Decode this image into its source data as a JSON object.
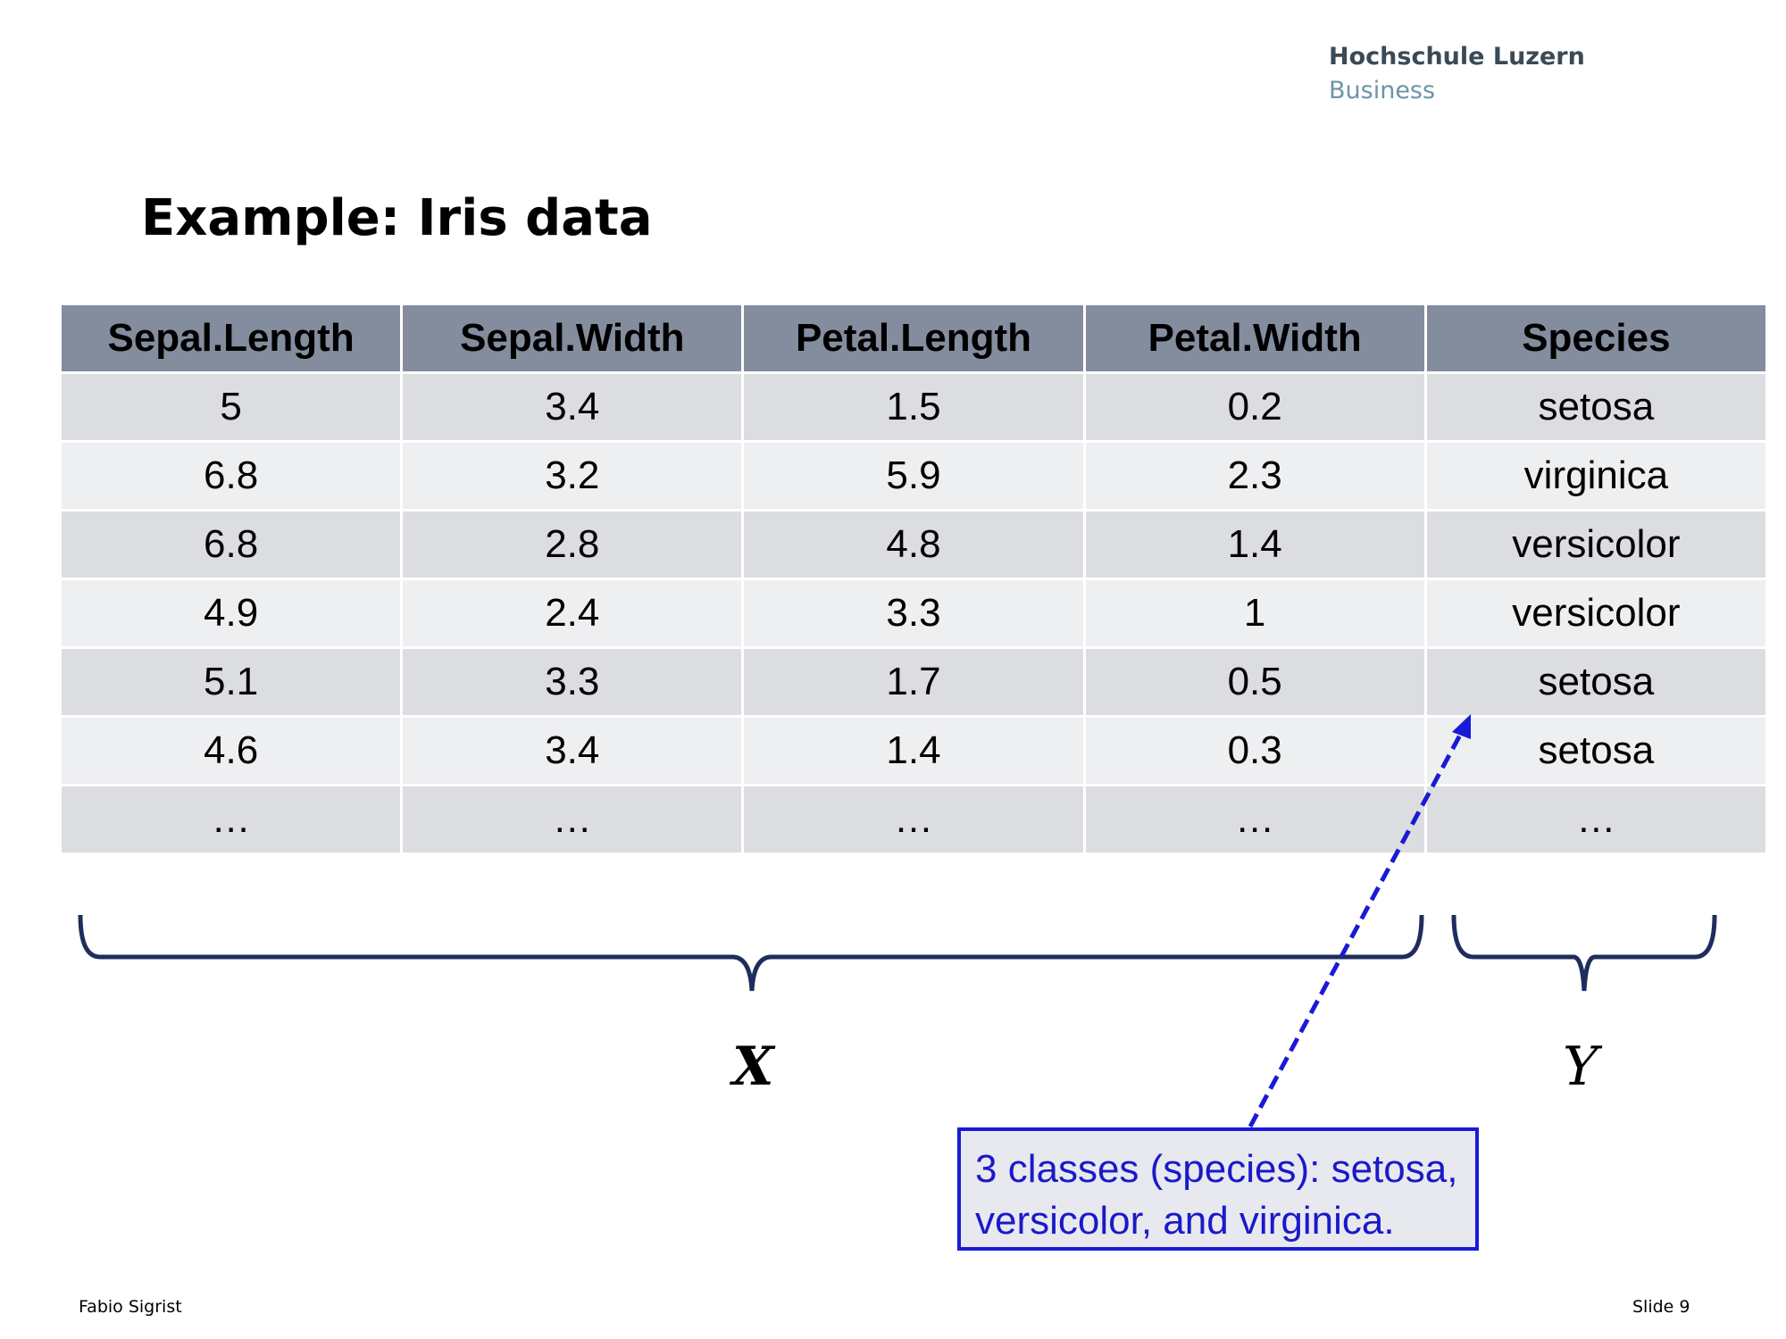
{
  "header": {
    "institution": "Hochschule Luzern",
    "department": "Business"
  },
  "title": "Example: Iris data",
  "table": {
    "columns": [
      "Sepal.Length",
      "Sepal.Width",
      "Petal.Length",
      "Petal.Width",
      "Species"
    ],
    "rows": [
      [
        "5",
        "3.4",
        "1.5",
        "0.2",
        "setosa"
      ],
      [
        "6.8",
        "3.2",
        "5.9",
        "2.3",
        "virginica"
      ],
      [
        "6.8",
        "2.8",
        "4.8",
        "1.4",
        "versicolor"
      ],
      [
        "4.9",
        "2.4",
        "3.3",
        "1",
        "versicolor"
      ],
      [
        "5.1",
        "3.3",
        "1.7",
        "0.5",
        "setosa"
      ],
      [
        "4.6",
        "3.4",
        "1.4",
        "0.3",
        "setosa"
      ],
      [
        "…",
        "…",
        "…",
        "…",
        "…"
      ]
    ]
  },
  "labels": {
    "x": "X",
    "y": "Y"
  },
  "callout": {
    "line1": "3 classes (species): setosa,",
    "line2": "versicolor, and virginica."
  },
  "footer": {
    "author": "Fabio Sigrist",
    "slide": "Slide 9"
  },
  "colors": {
    "header_bg": "#848d9e",
    "row_odd": "#dcdde1",
    "row_even": "#eeeff1",
    "brace": "#1f2d5c",
    "callout": "#1a1ad6"
  }
}
